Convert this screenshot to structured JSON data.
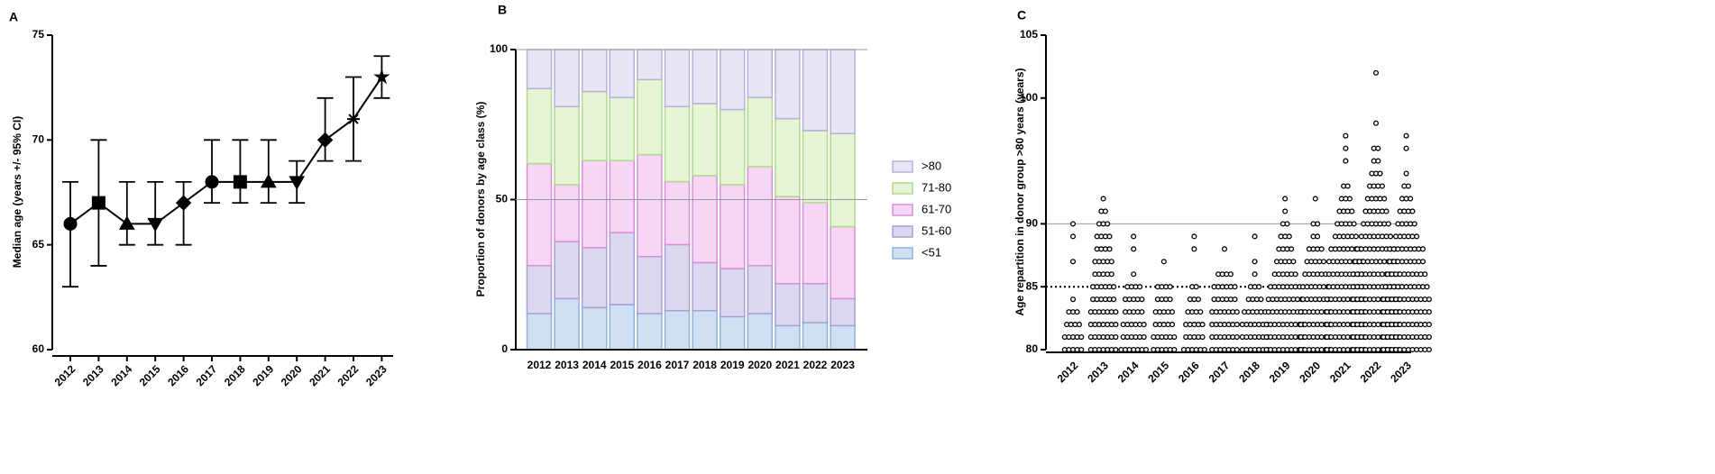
{
  "chart_data": [
    {
      "type": "line",
      "panel_label": "A",
      "y_label": "Median age (years +/- 95% CI)",
      "categories": [
        "2012",
        "2013",
        "2014",
        "2015",
        "2016",
        "2017",
        "2018",
        "2019",
        "2020",
        "2021",
        "2022",
        "2023"
      ],
      "values": [
        66,
        67,
        66,
        66,
        67,
        68,
        68,
        68,
        68,
        70,
        71,
        73
      ],
      "ci_low": [
        63,
        64,
        65,
        65,
        65,
        67,
        67,
        67,
        67,
        69,
        69,
        72
      ],
      "ci_high": [
        68,
        70,
        68,
        68,
        68,
        70,
        70,
        70,
        69,
        72,
        73,
        74
      ],
      "color": "#000000",
      "ylim": [
        60,
        75
      ],
      "yticks": [
        60,
        65,
        70,
        75
      ]
    },
    {
      "type": "stacked_bar",
      "panel_label": "B",
      "y_label": "Proportion of donors by age class (%)",
      "categories": [
        "2012",
        "2013",
        "2014",
        "2015",
        "2016",
        "2017",
        "2018",
        "2019",
        "2020",
        "2021",
        "2022",
        "2023"
      ],
      "series": [
        {
          "name": "<51",
          "color": "#cfe0f2",
          "edge_color": "#8fb3dc",
          "values": [
            12,
            17,
            14,
            15,
            12,
            13,
            13,
            11,
            12,
            8,
            9,
            8
          ]
        },
        {
          "name": "51-60",
          "color": "#dcd8f0",
          "edge_color": "#a79fd6",
          "values": [
            16,
            19,
            20,
            24,
            19,
            22,
            16,
            16,
            16,
            14,
            13,
            9
          ]
        },
        {
          "name": "61-70",
          "color": "#f6d6f5",
          "edge_color": "#d98fd8",
          "values": [
            34,
            19,
            29,
            24,
            34,
            21,
            29,
            28,
            33,
            29,
            27,
            24
          ]
        },
        {
          "name": "71-80",
          "color": "#e6f5d5",
          "edge_color": "#b3d98d",
          "values": [
            25,
            26,
            23,
            21,
            25,
            25,
            24,
            25,
            23,
            26,
            24,
            31
          ]
        },
        {
          "name": ">80",
          "color": "#e8e5f4",
          "edge_color": "#b6b0da",
          "values": [
            13,
            19,
            14,
            16,
            10,
            19,
            18,
            20,
            16,
            23,
            27,
            28
          ]
        }
      ],
      "ylim": [
        0,
        100
      ],
      "yticks": [
        0,
        50,
        100
      ],
      "grid": true,
      "legend": "right"
    },
    {
      "type": "dot_strip",
      "panel_label": "C",
      "y_label": "Age repartition in donor group >80 years (years)",
      "categories": [
        "2012",
        "2013",
        "2014",
        "2015",
        "2016",
        "2017",
        "2018",
        "2019",
        "2020",
        "2021",
        "2022",
        "2023"
      ],
      "ages": [
        80,
        81,
        82,
        83,
        84,
        85,
        86,
        87,
        88,
        89,
        90,
        91,
        92,
        93,
        94,
        95,
        96,
        97,
        98,
        99,
        100,
        101,
        102
      ],
      "counts": [
        [
          5,
          5,
          4,
          3,
          1,
          0,
          0,
          1,
          0,
          1,
          1,
          0,
          0,
          0,
          0,
          0,
          0,
          0,
          0,
          0,
          0,
          0,
          0
        ],
        [
          7,
          7,
          7,
          7,
          6,
          6,
          5,
          5,
          4,
          4,
          3,
          2,
          1,
          0,
          0,
          0,
          0,
          0,
          0,
          0,
          0,
          0,
          0
        ],
        [
          7,
          6,
          6,
          5,
          5,
          4,
          1,
          0,
          1,
          1,
          0,
          0,
          0,
          0,
          0,
          0,
          0,
          0,
          0,
          0,
          0,
          0,
          0
        ],
        [
          6,
          6,
          5,
          5,
          4,
          4,
          0,
          1,
          0,
          0,
          0,
          0,
          0,
          0,
          0,
          0,
          0,
          0,
          0,
          0,
          0,
          0,
          0
        ],
        [
          6,
          5,
          5,
          4,
          3,
          2,
          0,
          0,
          1,
          1,
          0,
          0,
          0,
          0,
          0,
          0,
          0,
          0,
          0,
          0,
          0,
          0,
          0
        ],
        [
          7,
          7,
          7,
          7,
          6,
          6,
          4,
          0,
          1,
          0,
          0,
          0,
          0,
          0,
          0,
          0,
          0,
          0,
          0,
          0,
          0,
          0,
          0
        ],
        [
          7,
          7,
          7,
          6,
          4,
          3,
          1,
          1,
          0,
          1,
          0,
          0,
          0,
          0,
          0,
          0,
          0,
          0,
          0,
          0,
          0,
          0,
          0
        ],
        [
          10,
          10,
          10,
          9,
          9,
          8,
          6,
          5,
          4,
          3,
          2,
          1,
          1,
          0,
          0,
          0,
          0,
          0,
          0,
          0,
          0,
          0,
          0
        ],
        [
          8,
          8,
          8,
          8,
          7,
          7,
          6,
          5,
          4,
          2,
          2,
          0,
          1,
          0,
          0,
          0,
          0,
          0,
          0,
          0,
          0,
          0,
          0
        ],
        [
          10,
          10,
          10,
          10,
          10,
          9,
          9,
          9,
          8,
          6,
          5,
          4,
          3,
          2,
          0,
          1,
          1,
          1,
          0,
          0,
          0,
          0,
          0
        ],
        [
          12,
          12,
          12,
          12,
          12,
          12,
          12,
          11,
          10,
          8,
          7,
          6,
          5,
          4,
          3,
          2,
          2,
          0,
          1,
          0,
          0,
          0,
          1
        ],
        [
          12,
          12,
          12,
          12,
          12,
          11,
          10,
          9,
          9,
          6,
          5,
          4,
          3,
          2,
          1,
          0,
          1,
          1,
          0,
          0,
          0,
          0,
          0
        ]
      ],
      "color": "#000000",
      "ylim": [
        80,
        105
      ],
      "yticks": [
        80,
        85,
        90,
        100,
        105
      ],
      "hlines": [
        {
          "value": 85,
          "style": "dotted"
        },
        {
          "value": 90,
          "style": "solid"
        }
      ]
    }
  ]
}
